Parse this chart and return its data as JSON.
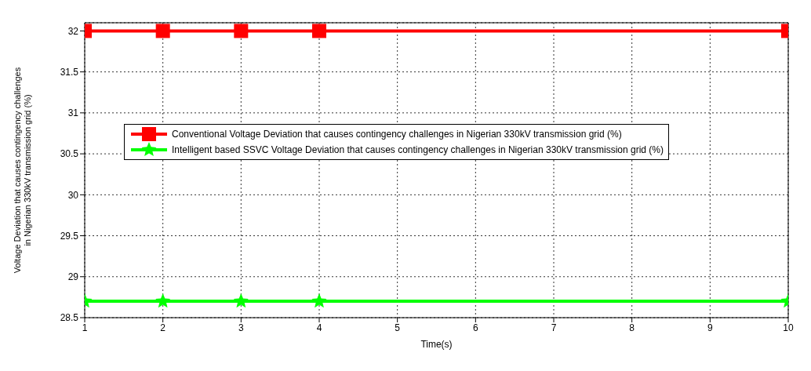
{
  "chart_data": {
    "type": "line",
    "xlabel": "Time(s)",
    "ylabel": "Voltage Deviation that causes contingency challenges in Nigerian 330kV transmission grid (%)",
    "x": [
      1,
      2,
      3,
      4,
      10
    ],
    "series": [
      {
        "name": "Conventional Voltage Deviation that causes contingency challenges in Nigerian 330kV transmission grid (%)",
        "color": "#ff0000",
        "marker": "square",
        "values": [
          32,
          32,
          32,
          32,
          32
        ]
      },
      {
        "name": "Intelligent based SSVC Voltage Deviation that causes contingency challenges in Nigerian 330kV transmission grid (%)",
        "color": "#00ff00",
        "marker": "star",
        "values": [
          28.7,
          28.7,
          28.7,
          28.7,
          28.7
        ]
      }
    ],
    "xlim": [
      1,
      10
    ],
    "xticks": [
      1,
      2,
      3,
      4,
      5,
      6,
      7,
      8,
      9,
      10
    ],
    "ylim": [
      28.5,
      32.1
    ],
    "yticks": [
      28.5,
      29,
      29.5,
      30,
      30.5,
      31,
      31.5,
      32
    ],
    "grid": true,
    "legend": "left",
    "line_style": "solid"
  }
}
